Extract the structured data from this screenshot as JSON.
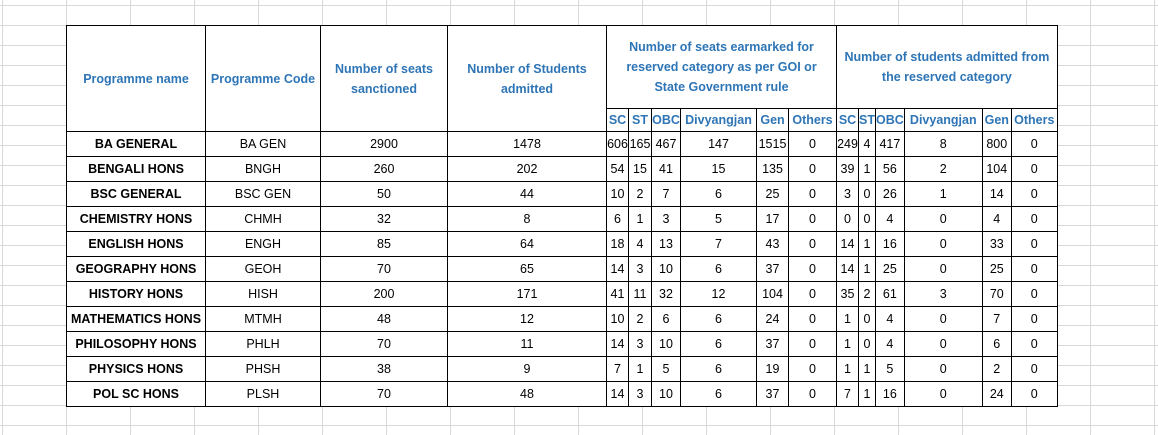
{
  "table": {
    "headers": {
      "programme_name": "Programme name",
      "programme_code": "Programme Code",
      "seats_sanctioned": "Number of seats sanctioned",
      "students_admitted": "Number of Students admitted",
      "earmarked": "Number of  seats earmarked for reserved category as per GOI or State Government rule",
      "reserved_admitted": "Number of students admitted from the reserved category"
    },
    "subheaders": [
      "SC",
      "ST",
      "OBC",
      "Divyangjan",
      "Gen",
      "Others"
    ],
    "rows": [
      {
        "name": "BA GENERAL",
        "code": "BA GEN",
        "sanctioned": "2900",
        "admitted": "1478",
        "e_sc": "606",
        "e_st": "165",
        "e_obc": "467",
        "e_div": "147",
        "e_gen": "1515",
        "e_oth": "0",
        "a_sc": "249",
        "a_st": "4",
        "a_obc": "417",
        "a_div": "8",
        "a_gen": "800",
        "a_oth": "0"
      },
      {
        "name": "BENGALI HONS",
        "code": "BNGH",
        "sanctioned": "260",
        "admitted": "202",
        "e_sc": "54",
        "e_st": "15",
        "e_obc": "41",
        "e_div": "15",
        "e_gen": "135",
        "e_oth": "0",
        "a_sc": "39",
        "a_st": "1",
        "a_obc": "56",
        "a_div": "2",
        "a_gen": "104",
        "a_oth": "0"
      },
      {
        "name": "BSC GENERAL",
        "code": "BSC GEN",
        "sanctioned": "50",
        "admitted": "44",
        "e_sc": "10",
        "e_st": "2",
        "e_obc": "7",
        "e_div": "6",
        "e_gen": "25",
        "e_oth": "0",
        "a_sc": "3",
        "a_st": "0",
        "a_obc": "26",
        "a_div": "1",
        "a_gen": "14",
        "a_oth": "0"
      },
      {
        "name": "CHEMISTRY HONS",
        "code": "CHMH",
        "sanctioned": "32",
        "admitted": "8",
        "e_sc": "6",
        "e_st": "1",
        "e_obc": "3",
        "e_div": "5",
        "e_gen": "17",
        "e_oth": "0",
        "a_sc": "0",
        "a_st": "0",
        "a_obc": "4",
        "a_div": "0",
        "a_gen": "4",
        "a_oth": "0"
      },
      {
        "name": "ENGLISH HONS",
        "code": "ENGH",
        "sanctioned": "85",
        "admitted": "64",
        "e_sc": "18",
        "e_st": "4",
        "e_obc": "13",
        "e_div": "7",
        "e_gen": "43",
        "e_oth": "0",
        "a_sc": "14",
        "a_st": "1",
        "a_obc": "16",
        "a_div": "0",
        "a_gen": "33",
        "a_oth": "0"
      },
      {
        "name": "GEOGRAPHY HONS",
        "code": "GEOH",
        "sanctioned": "70",
        "admitted": "65",
        "e_sc": "14",
        "e_st": "3",
        "e_obc": "10",
        "e_div": "6",
        "e_gen": "37",
        "e_oth": "0",
        "a_sc": "14",
        "a_st": "1",
        "a_obc": "25",
        "a_div": "0",
        "a_gen": "25",
        "a_oth": "0"
      },
      {
        "name": "HISTORY HONS",
        "code": "HISH",
        "sanctioned": "200",
        "admitted": "171",
        "e_sc": "41",
        "e_st": "11",
        "e_obc": "32",
        "e_div": "12",
        "e_gen": "104",
        "e_oth": "0",
        "a_sc": "35",
        "a_st": "2",
        "a_obc": "61",
        "a_div": "3",
        "a_gen": "70",
        "a_oth": "0"
      },
      {
        "name": "MATHEMATICS HONS",
        "code": "MTMH",
        "sanctioned": "48",
        "admitted": "12",
        "e_sc": "10",
        "e_st": "2",
        "e_obc": "6",
        "e_div": "6",
        "e_gen": "24",
        "e_oth": "0",
        "a_sc": "1",
        "a_st": "0",
        "a_obc": "4",
        "a_div": "0",
        "a_gen": "7",
        "a_oth": "0"
      },
      {
        "name": "PHILOSOPHY HONS",
        "code": "PHLH",
        "sanctioned": "70",
        "admitted": "11",
        "e_sc": "14",
        "e_st": "3",
        "e_obc": "10",
        "e_div": "6",
        "e_gen": "37",
        "e_oth": "0",
        "a_sc": "1",
        "a_st": "0",
        "a_obc": "4",
        "a_div": "0",
        "a_gen": "6",
        "a_oth": "0"
      },
      {
        "name": "PHYSICS HONS",
        "code": "PHSH",
        "sanctioned": "38",
        "admitted": "9",
        "e_sc": "7",
        "e_st": "1",
        "e_obc": "5",
        "e_div": "6",
        "e_gen": "19",
        "e_oth": "0",
        "a_sc": "1",
        "a_st": "1",
        "a_obc": "5",
        "a_div": "0",
        "a_gen": "2",
        "a_oth": "0"
      },
      {
        "name": "POL SC HONS",
        "code": "PLSH",
        "sanctioned": "70",
        "admitted": "48",
        "e_sc": "14",
        "e_st": "3",
        "e_obc": "10",
        "e_div": "6",
        "e_gen": "37",
        "e_oth": "0",
        "a_sc": "7",
        "a_st": "1",
        "a_obc": "16",
        "a_div": "0",
        "a_gen": "24",
        "a_oth": "0"
      }
    ]
  }
}
